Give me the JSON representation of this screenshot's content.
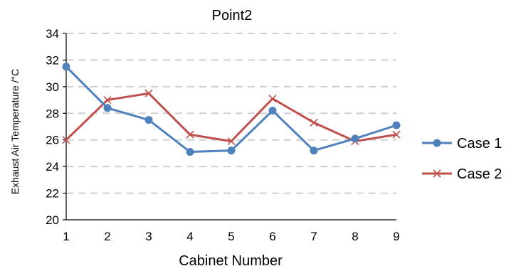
{
  "chart_data": {
    "type": "line",
    "title": "Point2",
    "xlabel": "Cabinet Number",
    "ylabel": "Exhaust Air Temperature /°C",
    "x": [
      1,
      2,
      3,
      4,
      5,
      6,
      7,
      8,
      9
    ],
    "ylim": [
      20,
      34
    ],
    "yticks": [
      20,
      22,
      24,
      26,
      28,
      30,
      32,
      34
    ],
    "grid": true,
    "legend": "right",
    "series": [
      {
        "name": "Case 1",
        "color": "#4f81bd",
        "marker": "circle",
        "values": [
          31.5,
          28.4,
          27.5,
          25.1,
          25.2,
          28.2,
          25.2,
          26.1,
          27.1
        ]
      },
      {
        "name": "Case 2",
        "color": "#c0504d",
        "marker": "x",
        "values": [
          26.0,
          29.0,
          29.5,
          26.4,
          25.9,
          29.1,
          27.3,
          25.9,
          26.4
        ]
      }
    ]
  }
}
